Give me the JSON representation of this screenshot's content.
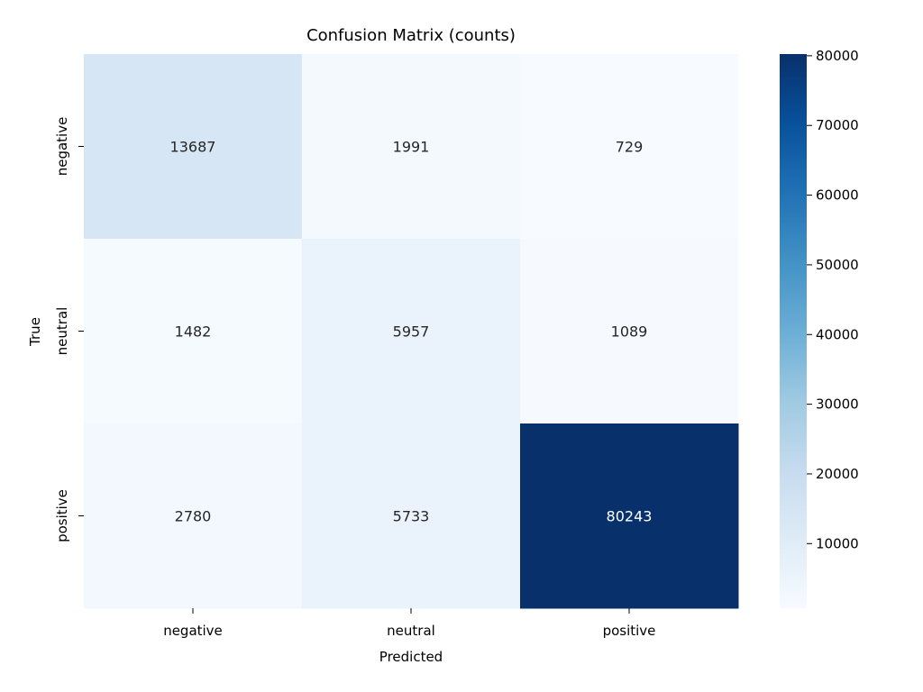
{
  "chart_data": {
    "type": "heatmap",
    "title": "Confusion Matrix (counts)",
    "xlabel": "Predicted",
    "ylabel": "True",
    "x_categories": [
      "negative",
      "neutral",
      "positive"
    ],
    "y_categories": [
      "negative",
      "neutral",
      "positive"
    ],
    "values": [
      [
        13687,
        1991,
        729
      ],
      [
        1482,
        5957,
        1089
      ],
      [
        2780,
        5733,
        80243
      ]
    ],
    "colormap": "Blues",
    "color_range": [
      729,
      80243
    ],
    "colorbar_ticks": [
      10000,
      20000,
      30000,
      40000,
      50000,
      60000,
      70000,
      80000
    ],
    "colorbar_labels": [
      "10000",
      "20000",
      "30000",
      "40000",
      "50000",
      "60000",
      "70000",
      "80000"
    ],
    "grid": false
  }
}
